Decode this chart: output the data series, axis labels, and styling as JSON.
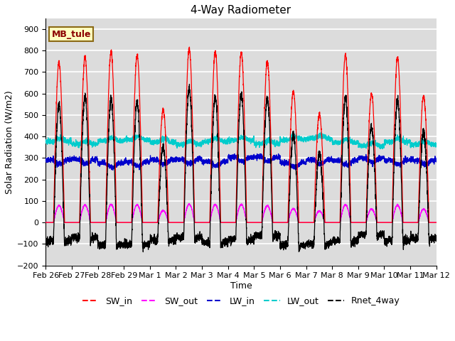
{
  "title": "4-Way Radiometer",
  "xlabel": "Time",
  "ylabel": "Solar Radiation (W/m2)",
  "ylim": [
    -200,
    950
  ],
  "yticks": [
    -200,
    -100,
    0,
    100,
    200,
    300,
    400,
    500,
    600,
    700,
    800,
    900
  ],
  "x_tick_labels": [
    "Feb 26",
    "Feb 27",
    "Feb 28",
    "Feb 29",
    "Mar 1",
    "Mar 2",
    "Mar 3",
    "Mar 4",
    "Mar 5",
    "Mar 6",
    "Mar 7",
    "Mar 8",
    "Mar 9",
    "Mar 10",
    "Mar 11",
    "Mar 12"
  ],
  "annotation_text": "MB_tule",
  "annotation_color": "#8B0000",
  "annotation_bg": "#FFFFC0",
  "background_color": "#DCDCDC",
  "grid_color": "white",
  "colors": {
    "SW_in": "#FF0000",
    "SW_out": "#FF00FF",
    "LW_in": "#0000CC",
    "LW_out": "#00CCCC",
    "Rnet_4way": "#000000"
  },
  "num_days": 15,
  "points_per_day": 288,
  "sw_in_peaks": [
    745,
    770,
    795,
    780,
    525,
    810,
    795,
    790,
    750,
    610,
    505,
    780,
    600,
    765,
    590
  ],
  "lw_in_base": 290,
  "lw_out_base": 375,
  "night_rnet": -75
}
